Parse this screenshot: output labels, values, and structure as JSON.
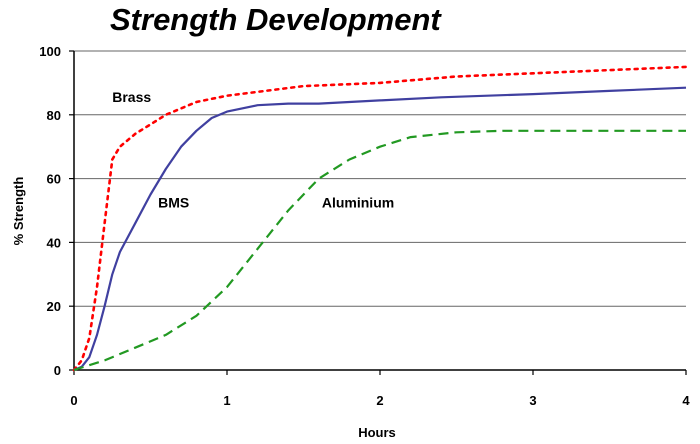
{
  "chart_data": {
    "type": "line",
    "title": "Strength Development",
    "xlabel": "Hours",
    "ylabel": "% Strength",
    "xlim": [
      0,
      4
    ],
    "ylim": [
      0,
      100
    ],
    "xticks": [
      0,
      1,
      2,
      3,
      4
    ],
    "yticks": [
      0,
      20,
      40,
      60,
      80,
      100
    ],
    "grid": "horizontal",
    "legend": "none",
    "series": [
      {
        "name": "Brass",
        "color": "#ff0000",
        "style": "dotted",
        "x": [
          0,
          0.05,
          0.1,
          0.15,
          0.2,
          0.25,
          0.3,
          0.4,
          0.5,
          0.6,
          0.8,
          1.0,
          1.5,
          2.0,
          2.5,
          3.0,
          3.5,
          4.0
        ],
        "y": [
          0,
          3,
          10,
          26,
          46,
          66,
          70,
          74,
          77,
          80,
          84,
          86,
          89,
          90,
          92,
          93,
          94,
          95
        ]
      },
      {
        "name": "BMS",
        "color": "#4040a0",
        "style": "solid",
        "x": [
          0,
          0.05,
          0.1,
          0.15,
          0.2,
          0.25,
          0.3,
          0.4,
          0.5,
          0.6,
          0.7,
          0.8,
          0.9,
          1.0,
          1.2,
          1.4,
          1.6,
          1.8,
          2.0,
          2.4,
          3.0,
          3.5,
          4.0
        ],
        "y": [
          0,
          1,
          4,
          11,
          20,
          30,
          37,
          46,
          55,
          63,
          70,
          75,
          79,
          81,
          83,
          83.5,
          83.5,
          84,
          84.5,
          85.5,
          86.5,
          87.5,
          88.5
        ]
      },
      {
        "name": "Aluminium",
        "color": "#229922",
        "style": "dashed",
        "x": [
          0,
          0.2,
          0.4,
          0.6,
          0.8,
          1.0,
          1.2,
          1.4,
          1.6,
          1.8,
          2.0,
          2.2,
          2.5,
          2.8,
          3.0,
          3.5,
          4.0
        ],
        "y": [
          0,
          3,
          7,
          11,
          17,
          26,
          38,
          50,
          60,
          66,
          70,
          73,
          74.5,
          75,
          75,
          75,
          75
        ]
      }
    ]
  },
  "annotations": [
    {
      "text": "Brass",
      "x": 0.25,
      "y": 84
    },
    {
      "text": "BMS",
      "x": 0.55,
      "y": 51
    },
    {
      "text": "Aluminium",
      "x": 1.62,
      "y": 51
    }
  ]
}
